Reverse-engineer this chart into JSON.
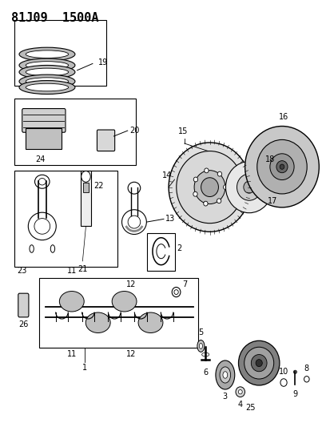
{
  "title": "81J09  1500A",
  "bg_color": "#ffffff",
  "line_color": "#000000",
  "title_fontsize": 11,
  "label_fontsize": 7
}
